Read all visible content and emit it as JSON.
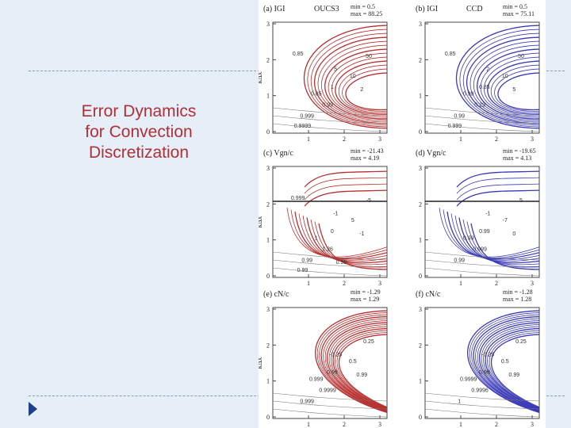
{
  "slide": {
    "title_lines": [
      "Error Dynamics",
      "for Convection",
      "Discretization"
    ],
    "accent_color": "#b0303a"
  },
  "figure": {
    "panels": [
      {
        "label": "(a) IGI",
        "scheme": "OUCS3",
        "min": "min = 0.5",
        "max": "max = 88.25",
        "color": "#b83030",
        "contour_labels": [
          "50",
          "10",
          "5",
          "2",
          "1",
          "0.85",
          "0.99",
          "0.999",
          "0.9999",
          "0.85"
        ]
      },
      {
        "label": "(b) IGI",
        "scheme": "CCD",
        "min": "min = 0.5",
        "max": "max = 75.11",
        "color": "#3a3ab8",
        "contour_labels": [
          "50",
          "10",
          "2",
          "5",
          "0.85",
          "0.99",
          "0.29",
          "0.99",
          "0.999",
          "0.85"
        ]
      },
      {
        "label": "(c) Vgn/c",
        "scheme": "",
        "min": "min = -21.43",
        "max": "max = 4.19",
        "color": "#b83030",
        "contour_labels": [
          "-5",
          "5",
          "-1",
          "-1",
          "0",
          "1",
          "1.26",
          "0.99",
          "0.99",
          "0.999",
          "0.99"
        ]
      },
      {
        "label": "(d) Vgn/c",
        "scheme": "",
        "min": "min = -19.65",
        "max": "max = 4.13",
        "color": "#3a3ab8",
        "contour_labels": [
          "5",
          "-7",
          "-1",
          "0",
          "0.99",
          "0.99",
          "0.999",
          "0.99"
        ]
      },
      {
        "label": "(e) cN/c",
        "scheme": "",
        "min": "min = -1.29",
        "max": "max = 1.29",
        "color": "#b83030",
        "contour_labels": [
          "0.25",
          "0.5",
          "-0.25",
          "0.99",
          "0.99",
          "0.999",
          "0.9999",
          "0.999"
        ]
      },
      {
        "label": "(f) cN/c",
        "scheme": "",
        "min": "min = -1.28",
        "max": "max = 1.28",
        "color": "#3a3ab8",
        "contour_labels": [
          "0.25",
          "0.5",
          "-0.25",
          "0.99",
          "0.99",
          "0.9999",
          "0.9996",
          "1"
        ]
      }
    ],
    "y_axis_label": "kΔx",
    "y_ticks": [
      "0",
      "1",
      "2",
      "3"
    ],
    "x_ticks": [
      "1",
      "2",
      "3"
    ]
  }
}
